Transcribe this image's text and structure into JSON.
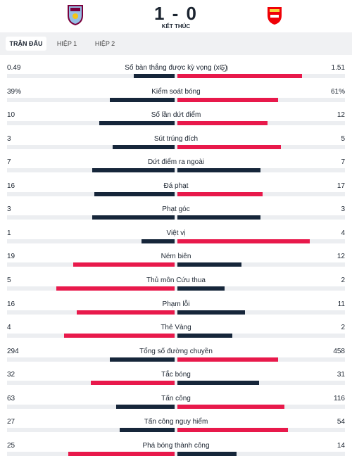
{
  "header": {
    "score": "1 - 0",
    "status": "KẾT THÚC"
  },
  "tabs": [
    "TRẬN ĐẤU",
    "HIỆP 1",
    "HIỆP 2"
  ],
  "bar_colors": {
    "higher": "#e8194b",
    "lower": "#16263a"
  },
  "stats": [
    {
      "label": "Số bàn thắng được kỳ vọng (xG)",
      "home": 0.49,
      "away": 1.51
    },
    {
      "label": "Kiểm soát bóng",
      "home": 39,
      "away": 61,
      "home_label": "39%",
      "away_label": "61%"
    },
    {
      "label": "Số lần dứt điểm",
      "home": 10,
      "away": 12
    },
    {
      "label": "Sút trúng đích",
      "home": 3,
      "away": 5
    },
    {
      "label": "Dứt điểm ra ngoài",
      "home": 7,
      "away": 7
    },
    {
      "label": "Đá phạt",
      "home": 16,
      "away": 17
    },
    {
      "label": "Phạt góc",
      "home": 3,
      "away": 3
    },
    {
      "label": "Việt vị",
      "home": 1,
      "away": 4
    },
    {
      "label": "Ném biên",
      "home": 19,
      "away": 12
    },
    {
      "label": "Thủ môn Cứu thua",
      "home": 5,
      "away": 2
    },
    {
      "label": "Phạm lỗi",
      "home": 16,
      "away": 11
    },
    {
      "label": "Thẻ Vàng",
      "home": 4,
      "away": 2
    },
    {
      "label": "Tổng số đường chuyền",
      "home": 294,
      "away": 458
    },
    {
      "label": "Tắc bóng",
      "home": 32,
      "away": 31
    },
    {
      "label": "Tấn công",
      "home": 63,
      "away": 116
    },
    {
      "label": "Tấn công nguy hiểm",
      "home": 27,
      "away": 54
    },
    {
      "label": "Phá bóng thành công",
      "home": 25,
      "away": 14
    }
  ]
}
